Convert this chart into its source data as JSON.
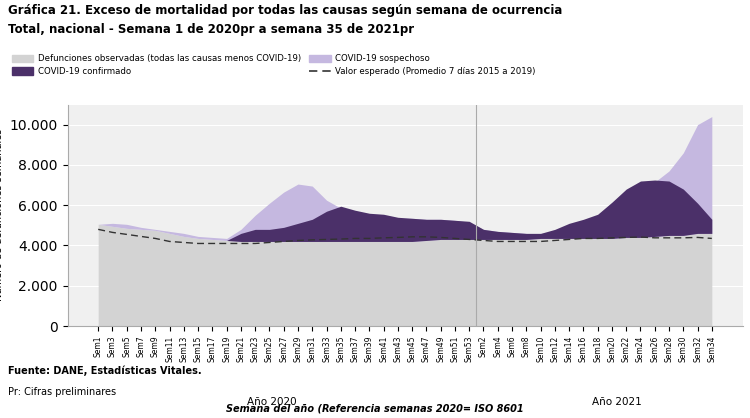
{
  "title_line1": "Gráfica 21. Exceso de mortalidad por todas las causas según semana de ocurrencia",
  "title_line2": "Total, nacional - Semana 1 de 2020pr a semana 35 de 2021pr",
  "xlabel": "Semana del año (Referencia semanas 2020= ISO 8601",
  "source_line1": "Fuente: DANE, Estadísticas Vitales.",
  "source_line2": "Pr: Cifras preliminares",
  "legend_defunciones": "Defunciones observadas (todas las causas menos COVID-19)",
  "legend_covid_confirmado": "COVID-19 confirmado",
  "legend_covid_sospechoso": "COVID-19 sospechoso",
  "legend_esperado": "Valor esperado (Promedio 7 días 2015 a 2019)",
  "anno_2020": "Año 2020",
  "anno_2021": "Año 2021",
  "ylim": [
    0,
    11000
  ],
  "yticks": [
    0,
    2000,
    4000,
    6000,
    8000,
    10000
  ],
  "color_defunciones": "#d3d3d3",
  "color_covid_confirmado": "#4b3069",
  "color_covid_sospechoso": "#c5b8e0",
  "color_esperado": "#333333",
  "bg_color": "#f0f0f0",
  "x_labels_2020": [
    "Sem1",
    "Sem3",
    "Sem5",
    "Sem7",
    "Sem9",
    "Sem11",
    "Sem13",
    "Sem15",
    "Sem17",
    "Sem19",
    "Sem21",
    "Sem23",
    "Sem25",
    "Sem27",
    "Sem29",
    "Sem31",
    "Sem33",
    "Sem35",
    "Sem37",
    "Sem39",
    "Sem41",
    "Sem43",
    "Sem45",
    "Sem47",
    "Sem49",
    "Sem51",
    "Sem53"
  ],
  "x_labels_2021": [
    "Sem2",
    "Sem4",
    "Sem6",
    "Sem8",
    "Sem10",
    "Sem12",
    "Sem14",
    "Sem16",
    "Sem18",
    "Sem20",
    "Sem22",
    "Sem24",
    "Sem26",
    "Sem28",
    "Sem30",
    "Sem32",
    "Sem34"
  ],
  "defunciones": [
    5050,
    4950,
    4850,
    4800,
    4750,
    4600,
    4450,
    4350,
    4300,
    4250,
    4200,
    4200,
    4200,
    4200,
    4200,
    4200,
    4200,
    4200,
    4200,
    4200,
    4200,
    4200,
    4200,
    4250,
    4300,
    4300,
    4300,
    4300,
    4300,
    4300,
    4300,
    4350,
    4350,
    4350,
    4350,
    4350,
    4350,
    4400,
    4400,
    4450,
    4500,
    4500,
    4600,
    4600
  ],
  "covid_confirmado_total": [
    0,
    0,
    0,
    0,
    0,
    0,
    0,
    0,
    0,
    0,
    400,
    600,
    600,
    700,
    900,
    1100,
    1500,
    1750,
    1550,
    1400,
    1350,
    1200,
    1150,
    1050,
    1000,
    950,
    900,
    500,
    400,
    350,
    300,
    250,
    450,
    750,
    950,
    1200,
    1800,
    2400,
    2800,
    2800,
    2700,
    2300,
    1500,
    700
  ],
  "covid_total": [
    0,
    150,
    200,
    100,
    50,
    100,
    150,
    100,
    100,
    100,
    600,
    1300,
    1900,
    2450,
    2850,
    2750,
    2050,
    1650,
    1500,
    1350,
    1250,
    1150,
    1150,
    1050,
    1000,
    950,
    850,
    500,
    400,
    350,
    300,
    250,
    300,
    450,
    650,
    950,
    1400,
    1900,
    2400,
    2700,
    3200,
    4100,
    5400,
    5800
  ],
  "esperado": [
    4800,
    4650,
    4550,
    4450,
    4350,
    4200,
    4150,
    4100,
    4100,
    4100,
    4100,
    4100,
    4150,
    4200,
    4250,
    4280,
    4300,
    4320,
    4350,
    4350,
    4380,
    4400,
    4430,
    4430,
    4400,
    4350,
    4300,
    4250,
    4200,
    4200,
    4200,
    4200,
    4250,
    4300,
    4350,
    4350,
    4380,
    4400,
    4420,
    4380,
    4380,
    4380,
    4400,
    4350
  ]
}
